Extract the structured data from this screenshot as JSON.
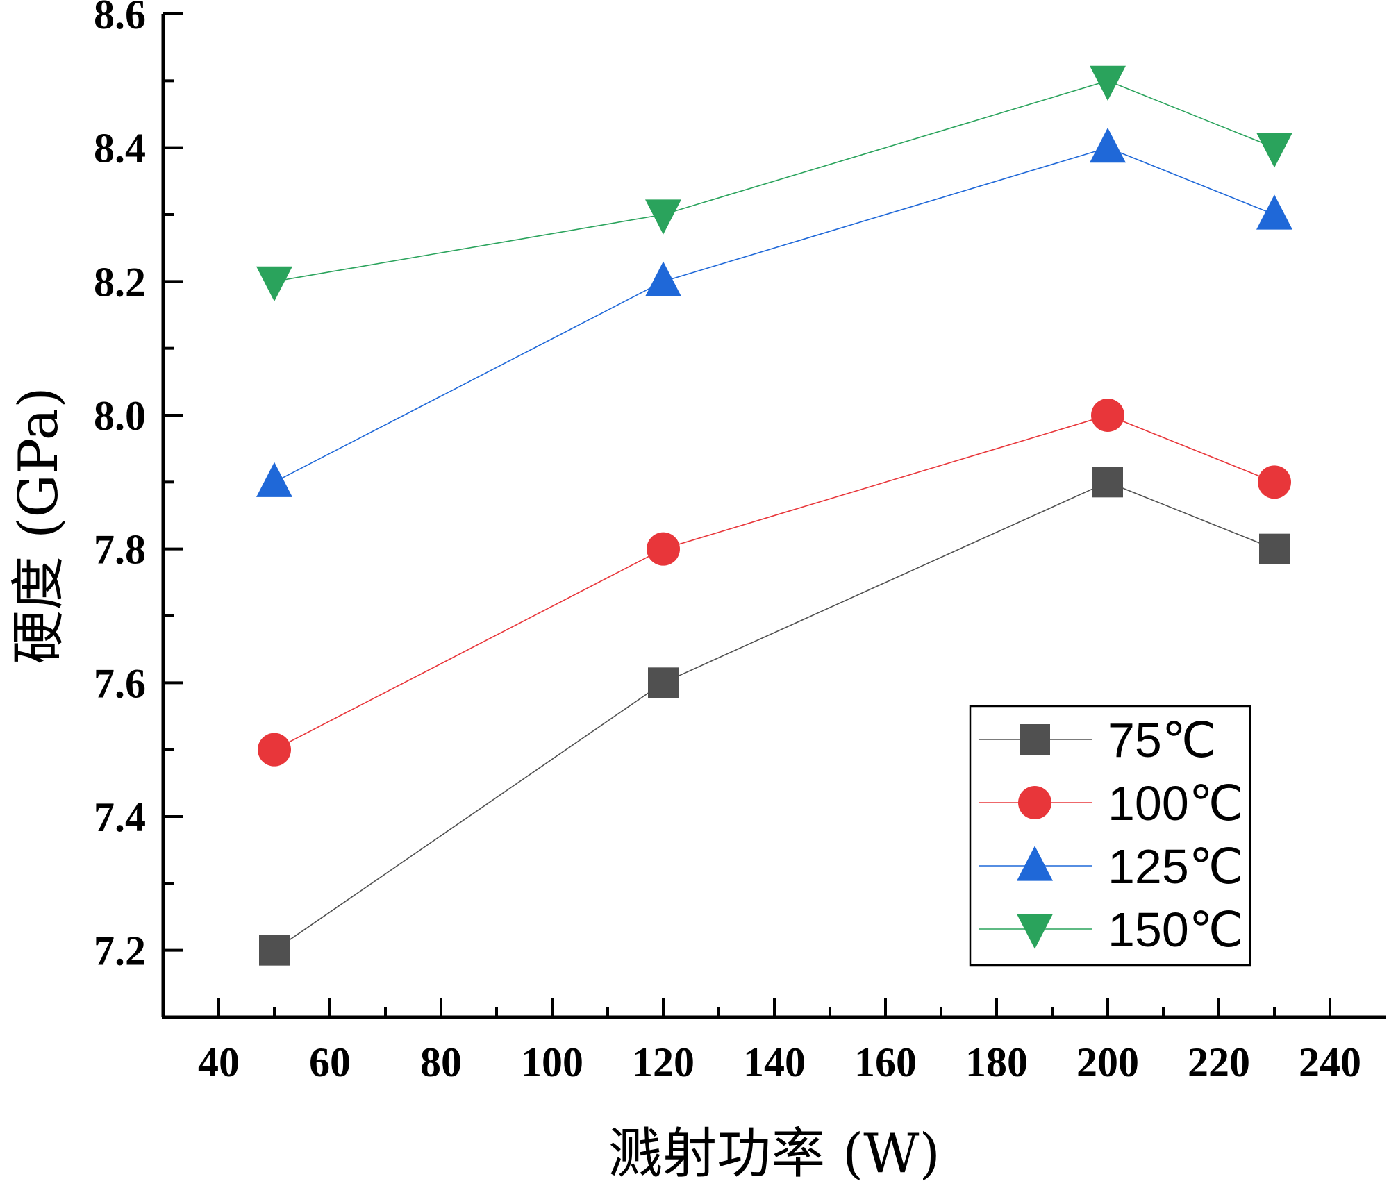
{
  "chart_data": {
    "type": "line",
    "title": "",
    "xlabel": "溅射功率 (W)",
    "ylabel": "硬度 (GPa)",
    "xlim": [
      30,
      250
    ],
    "ylim": [
      7.1,
      8.6
    ],
    "xticks": [
      40,
      60,
      80,
      100,
      120,
      140,
      160,
      180,
      200,
      220,
      240
    ],
    "yticks": [
      7.2,
      7.4,
      7.6,
      7.8,
      8.0,
      8.2,
      8.4,
      8.6
    ],
    "x": [
      50,
      120,
      200,
      230
    ],
    "series": [
      {
        "name": "75℃",
        "values": [
          7.2,
          7.6,
          7.9,
          7.8
        ],
        "color": "#505050",
        "marker": "square"
      },
      {
        "name": "100℃",
        "values": [
          7.5,
          7.8,
          8.0,
          7.9
        ],
        "color": "#e8363a",
        "marker": "circle"
      },
      {
        "name": "125℃",
        "values": [
          7.9,
          8.2,
          8.4,
          8.3
        ],
        "color": "#1f68d8",
        "marker": "triangle-up"
      },
      {
        "name": "150℃",
        "values": [
          8.2,
          8.3,
          8.5,
          8.4
        ],
        "color": "#2aa35c",
        "marker": "triangle-down"
      }
    ],
    "legend_position": "bottom-right",
    "grid": false
  }
}
